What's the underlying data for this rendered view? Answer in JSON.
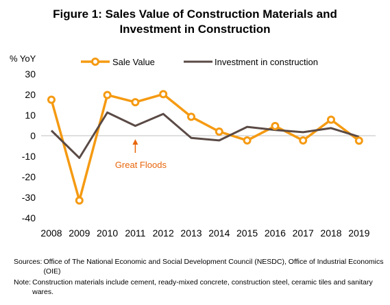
{
  "title_line1": "Figure 1: Sales Value of Construction Materials and",
  "title_line2": "Investment in Construction",
  "chart_data": {
    "type": "line",
    "ylabel": "% YoY",
    "xlabel": "",
    "ylim": [
      -40,
      30
    ],
    "yticks": [
      -40,
      -30,
      -20,
      -10,
      0,
      10,
      20,
      30
    ],
    "categories": [
      "2008",
      "2009",
      "2010",
      "2011",
      "2012",
      "2013",
      "2014",
      "2015",
      "2016",
      "2017",
      "2018",
      "2019"
    ],
    "legend_position": "top",
    "grid": false,
    "series": [
      {
        "name": "Sale Value",
        "color": "#F59A12",
        "marker": "circle",
        "values": [
          17.5,
          -31.5,
          19.8,
          16.3,
          20.2,
          9.2,
          2.0,
          -2.3,
          4.7,
          -2.3,
          7.8,
          -2.4
        ]
      },
      {
        "name": "Investment in construction",
        "color": "#5A4A45",
        "marker": "none",
        "values": [
          2.5,
          -10.8,
          11.3,
          4.8,
          10.6,
          -1.1,
          -2.3,
          4.3,
          2.8,
          1.7,
          3.7,
          -0.5
        ]
      }
    ],
    "annotations": [
      {
        "text": "Great Floods",
        "x": "2011",
        "color": "#E8650A"
      }
    ]
  },
  "footnotes": {
    "sources_label": "Sources:",
    "sources_text": "Office of The National Economic and Social Development Council (NESDC),  Office of Industrial Economics (OIE)",
    "note_label": "Note:",
    "note_text": "Construction materials include cement, ready-mixed concrete, construction steel, ceramic tiles and sanitary wares."
  }
}
